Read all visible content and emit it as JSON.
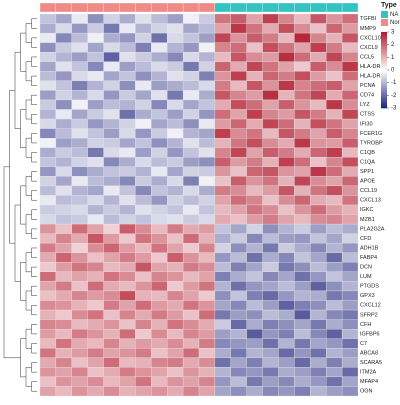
{
  "chart_data": {
    "type": "heatmap",
    "rows": [
      "TGFBI",
      "MMP9",
      "CXCL10",
      "CXCL9",
      "CCL5",
      "HLA-DRB1",
      "HLA-DRB5",
      "PCNA",
      "CD74",
      "LYZ",
      "CTSS",
      "IFI30",
      "FCER1G",
      "TYROBP",
      "C1QB",
      "C1QA",
      "SPP1",
      "APOE",
      "CCL19",
      "CXCL13",
      "IGKC",
      "MZB1",
      "PLA2G2A",
      "CFD",
      "ADH1B",
      "FABP4",
      "DCN",
      "LUM",
      "PTGDS",
      "GPX3",
      "CXCL12",
      "SFRP2",
      "CFH",
      "IGFBP6",
      "C7",
      "ABCA8",
      "SCARA5",
      "ITM2A",
      "MFAP4",
      "OGN"
    ],
    "values": [
      [
        -0.8,
        -1.2,
        -0.3,
        -1.5,
        -0.6,
        -1.1,
        -0.4,
        -0.9,
        -1.3,
        -0.2,
        -0.7,
        1.8,
        2.1,
        1.2,
        2.5,
        1.6,
        0.9,
        2.2,
        1.4,
        1.9
      ],
      [
        -1.1,
        -0.5,
        -1.4,
        -0.7,
        -1.8,
        -0.3,
        -1.0,
        -0.6,
        -0.4,
        -1.2,
        -0.9,
        1.2,
        2.6,
        1.8,
        1.1,
        2.3,
        1.5,
        0.8,
        2.0,
        1.3
      ],
      [
        -0.3,
        -1.6,
        -0.9,
        -0.2,
        -1.1,
        -1.4,
        -0.6,
        -1.9,
        -0.5,
        -0.8,
        -1.3,
        2.4,
        1.4,
        2.1,
        1.7,
        0.9,
        2.8,
        1.6,
        1.0,
        2.2
      ],
      [
        -1.5,
        -0.7,
        -0.4,
        -1.2,
        -0.5,
        -0.9,
        -1.7,
        -0.3,
        -1.0,
        -1.4,
        -0.2,
        1.6,
        1.9,
        0.8,
        2.3,
        1.8,
        1.2,
        2.5,
        1.7,
        0.9
      ],
      [
        -0.6,
        -1.0,
        -1.3,
        -0.8,
        -2.1,
        -0.4,
        -0.7,
        -1.1,
        -1.6,
        -0.5,
        -1.0,
        0.9,
        2.2,
        1.5,
        1.3,
        2.7,
        1.9,
        1.1,
        2.4,
        1.6
      ],
      [
        -1.2,
        -0.4,
        -0.8,
        -1.6,
        -0.3,
        -1.3,
        -0.9,
        -0.5,
        -0.7,
        -1.8,
        -0.6,
        2.0,
        1.1,
        2.4,
        1.8,
        1.2,
        0.7,
        2.1,
        1.5,
        2.6
      ],
      [
        -0.9,
        -1.4,
        -0.5,
        -0.3,
        -1.2,
        -0.8,
        -1.5,
        -1.0,
        -0.4,
        -0.6,
        -1.7,
        1.4,
        2.5,
        1.0,
        2.0,
        1.7,
        2.3,
        1.3,
        0.8,
        1.9
      ],
      [
        -0.4,
        -0.8,
        -1.7,
        -1.0,
        -0.6,
        -1.5,
        -0.3,
        -1.3,
        -1.1,
        -0.9,
        -0.5,
        1.7,
        0.9,
        2.2,
        1.4,
        2.6,
        1.6,
        1.9,
        2.1,
        1.2
      ],
      [
        -1.3,
        -0.6,
        -1.0,
        -0.5,
        -1.4,
        -0.7,
        -1.2,
        -0.4,
        -1.8,
        -0.3,
        -1.1,
        2.2,
        1.6,
        1.3,
        2.7,
        1.0,
        1.8,
        2.4,
        1.1,
        2.0
      ],
      [
        -0.7,
        -1.5,
        -0.2,
        -1.3,
        -0.9,
        -1.0,
        -0.6,
        -1.6,
        -0.5,
        -1.2,
        -0.8,
        1.1,
        2.3,
        1.9,
        1.2,
        2.1,
        1.4,
        0.9,
        2.6,
        1.5
      ],
      [
        -1.0,
        -0.3,
        -1.2,
        -0.7,
        -0.4,
        -1.9,
        -1.1,
        -0.8,
        -1.3,
        -0.6,
        -1.4,
        1.9,
        1.2,
        2.5,
        1.6,
        1.3,
        2.2,
        1.7,
        1.0,
        2.4
      ],
      [
        -0.5,
        -1.1,
        -0.7,
        -1.4,
        -1.0,
        -0.6,
        -0.2,
        -1.2,
        -0.9,
        -1.5,
        -0.3,
        1.3,
        2.0,
        1.1,
        2.4,
        1.9,
        1.0,
        2.3,
        1.8,
        1.2
      ],
      [
        -1.6,
        -0.9,
        -0.4,
        -0.8,
        -1.3,
        -0.5,
        -1.4,
        -0.7,
        -0.2,
        -1.0,
        -1.2,
        2.5,
        1.5,
        1.8,
        0.9,
        2.2,
        1.7,
        1.2,
        2.1,
        1.6
      ],
      [
        -0.2,
        -1.3,
        -1.1,
        -0.6,
        -0.7,
        -1.2,
        -0.8,
        -1.5,
        -1.0,
        -0.4,
        -0.9,
        1.0,
        1.8,
        2.3,
        1.5,
        1.1,
        2.6,
        1.4,
        1.3,
        2.1
      ],
      [
        -1.1,
        -0.7,
        -0.9,
        -1.8,
        -0.5,
        -0.3,
        -1.3,
        -0.6,
        -1.4,
        -0.8,
        -0.4,
        1.6,
        2.4,
        1.2,
        2.1,
        1.7,
        1.1,
        2.0,
        2.5,
        0.9
      ],
      [
        -0.8,
        -1.0,
        -0.6,
        -0.4,
        -1.6,
        -1.1,
        -0.5,
        -0.9,
        -0.7,
        -1.3,
        -1.5,
        2.1,
        1.3,
        1.7,
        1.0,
        2.5,
        1.9,
        0.8,
        1.6,
        2.3
      ],
      [
        -1.4,
        -0.5,
        -1.5,
        -1.1,
        -0.8,
        -0.7,
        -1.0,
        -0.3,
        -1.2,
        -0.6,
        -0.7,
        1.4,
        0.8,
        2.0,
        2.2,
        1.4,
        1.2,
        2.6,
        1.9,
        1.1
      ],
      [
        -0.6,
        -1.2,
        -0.3,
        -0.9,
        -1.1,
        -1.6,
        -0.7,
        -1.1,
        -0.5,
        -1.7,
        -0.2,
        0.8,
        2.1,
        1.4,
        1.8,
        1.0,
        2.4,
        1.5,
        1.2,
        2.0
      ],
      [
        -0.9,
        -0.4,
        -1.0,
        -1.2,
        -0.3,
        -0.8,
        -1.6,
        -0.8,
        -1.0,
        -0.5,
        -1.1,
        1.7,
        1.5,
        0.9,
        1.3,
        2.2,
        1.0,
        1.8,
        2.3,
        1.4
      ],
      [
        -0.3,
        -0.9,
        -0.8,
        -0.5,
        -1.0,
        -0.4,
        -0.9,
        -1.4,
        -0.6,
        -0.9,
        -0.6,
        1.2,
        1.9,
        1.6,
        0.8,
        1.5,
        2.0,
        1.1,
        0.9,
        1.8
      ],
      [
        -0.7,
        -0.6,
        -0.5,
        -1.0,
        -0.7,
        -1.0,
        -0.4,
        -0.6,
        -0.8,
        -0.3,
        -0.8,
        0.9,
        1.2,
        1.8,
        1.5,
        0.8,
        1.4,
        1.9,
        1.3,
        1.0
      ],
      [
        -0.5,
        -0.8,
        -0.7,
        -0.3,
        -0.9,
        -0.6,
        -0.8,
        -0.5,
        -0.4,
        -0.7,
        -0.5,
        1.1,
        0.8,
        1.3,
        1.7,
        1.2,
        0.9,
        1.5,
        1.6,
        1.2
      ],
      [
        1.4,
        0.8,
        1.9,
        1.2,
        0.6,
        2.1,
        1.5,
        0.9,
        1.7,
        1.1,
        1.3,
        -0.8,
        -1.2,
        -0.6,
        -1.5,
        -1.0,
        -0.7,
        -1.3,
        -0.9,
        -1.1
      ],
      [
        0.9,
        1.6,
        1.1,
        2.2,
        1.3,
        0.7,
        1.8,
        1.4,
        0.8,
        1.9,
        1.0,
        -1.1,
        -0.7,
        -1.6,
        -0.9,
        -1.3,
        -1.4,
        -0.8,
        -1.2,
        -0.6
      ],
      [
        1.7,
        1.2,
        0.6,
        1.5,
        2.0,
        1.3,
        0.9,
        1.8,
        1.2,
        0.7,
        1.6,
        -0.6,
        -1.5,
        -1.0,
        -1.8,
        -0.7,
        -1.1,
        -1.6,
        -1.0,
        -1.4
      ],
      [
        1.1,
        2.0,
        1.4,
        0.8,
        1.2,
        1.7,
        1.3,
        0.7,
        2.1,
        1.4,
        0.9,
        -1.4,
        -0.9,
        -1.9,
        -1.1,
        -1.6,
        -0.8,
        -1.2,
        -2.0,
        -0.9
      ],
      [
        0.7,
        1.3,
        1.8,
        1.6,
        0.9,
        1.1,
        2.2,
        1.2,
        1.0,
        1.7,
        1.5,
        -0.9,
        -1.7,
        -1.2,
        -0.7,
        -1.8,
        -1.5,
        -0.9,
        -1.3,
        -1.7
      ],
      [
        1.9,
        0.9,
        1.2,
        1.0,
        1.8,
        1.5,
        0.8,
        1.6,
        1.4,
        0.9,
        1.2,
        -1.7,
        -1.1,
        -0.8,
        -1.6,
        -1.2,
        -1.9,
        -1.4,
        -0.8,
        -1.2
      ],
      [
        1.2,
        1.7,
        0.8,
        1.9,
        1.1,
        0.9,
        1.4,
        2.0,
        0.7,
        1.3,
        1.8,
        -1.0,
        -1.9,
        -1.4,
        -1.2,
        -0.9,
        -1.3,
        -2.1,
        -1.5,
        -1.0
      ],
      [
        0.8,
        1.1,
        1.6,
        1.3,
        1.5,
        2.3,
        1.0,
        0.9,
        1.6,
        1.2,
        0.7,
        -1.5,
        -0.8,
        -1.7,
        -2.0,
        -1.4,
        -1.0,
        -1.1,
        -1.8,
        -1.6
      ],
      [
        1.5,
        1.4,
        1.0,
        0.7,
        1.7,
        1.2,
        1.9,
        1.3,
        1.1,
        1.8,
        1.4,
        -1.2,
        -1.6,
        -0.9,
        -1.3,
        -2.1,
        -1.7,
        -1.5,
        -0.9,
        -1.3
      ],
      [
        1.0,
        0.7,
        1.5,
        1.8,
        0.8,
        1.6,
        1.1,
        1.7,
        1.3,
        0.8,
        1.9,
        -1.8,
        -1.3,
        -1.5,
        -0.9,
        -1.1,
        -2.2,
        -1.0,
        -1.6,
        -1.8
      ],
      [
        1.6,
        1.5,
        0.9,
        1.1,
        1.4,
        0.8,
        1.6,
        1.0,
        1.8,
        1.5,
        1.1,
        -0.7,
        -2.0,
        -1.1,
        -1.7,
        -1.5,
        -1.2,
        -1.8,
        -1.1,
        -1.5
      ],
      [
        1.3,
        0.9,
        1.7,
        1.4,
        1.0,
        1.9,
        0.7,
        1.5,
        0.9,
        1.6,
        1.3,
        -1.3,
        -1.0,
        -2.2,
        -1.4,
        -1.7,
        -0.9,
        -1.6,
        -2.1,
        -1.0
      ],
      [
        0.9,
        1.8,
        1.1,
        0.9,
        1.6,
        1.0,
        1.3,
        1.1,
        1.5,
        1.0,
        1.7,
        -1.6,
        -1.4,
        -1.3,
        -1.9,
        -1.0,
        -1.8,
        -1.2,
        -1.4,
        -1.9
      ],
      [
        1.8,
        1.0,
        1.3,
        1.7,
        1.2,
        1.4,
        1.7,
        0.8,
        1.2,
        1.9,
        0.8,
        -1.1,
        -1.8,
        -1.0,
        -1.2,
        -2.0,
        -1.4,
        -1.9,
        -1.0,
        -1.3
      ],
      [
        1.1,
        1.6,
        0.8,
        1.2,
        1.9,
        0.9,
        1.0,
        1.6,
        1.7,
        1.1,
        1.5,
        -1.9,
        -1.2,
        -1.7,
        -1.0,
        -1.3,
        -2.0,
        -1.1,
        -1.7,
        -1.1
      ],
      [
        1.4,
        1.2,
        1.6,
        0.8,
        1.1,
        1.7,
        1.4,
        1.2,
        0.8,
        1.4,
        1.0,
        -1.0,
        -1.6,
        -1.4,
        -1.8,
        -1.1,
        -1.3,
        -1.7,
        -1.2,
        -2.0
      ],
      [
        0.8,
        1.4,
        1.2,
        1.5,
        0.9,
        1.2,
        1.8,
        0.9,
        1.4,
        1.2,
        1.6,
        -1.4,
        -0.9,
        -1.8,
        -1.3,
        -1.6,
        -1.1,
        -1.4,
        -1.9,
        -1.2
      ],
      [
        1.2,
        0.9,
        1.4,
        1.1,
        1.5,
        1.0,
        1.2,
        1.4,
        1.1,
        1.6,
        1.2,
        -1.2,
        -1.5,
        -1.1,
        -1.6,
        -1.4,
        -1.7,
        -1.0,
        -1.3,
        -1.5
      ]
    ],
    "zlim": [
      -3,
      3
    ],
    "zticks": [
      3,
      2,
      1,
      0,
      -1,
      -2,
      -3
    ],
    "colors": {
      "low": "#1b1f7a",
      "mid": "#ffffff",
      "high": "#b2182b"
    },
    "annotation": {
      "title": "Type",
      "groups": [
        {
          "name": "NA",
          "color": "#33c3c3"
        },
        {
          "name": "Normal",
          "color": "#f08a86"
        }
      ],
      "columns": [
        1,
        1,
        1,
        1,
        1,
        1,
        1,
        1,
        1,
        1,
        1,
        0,
        0,
        0,
        0,
        0,
        0,
        0,
        0,
        0
      ]
    }
  }
}
